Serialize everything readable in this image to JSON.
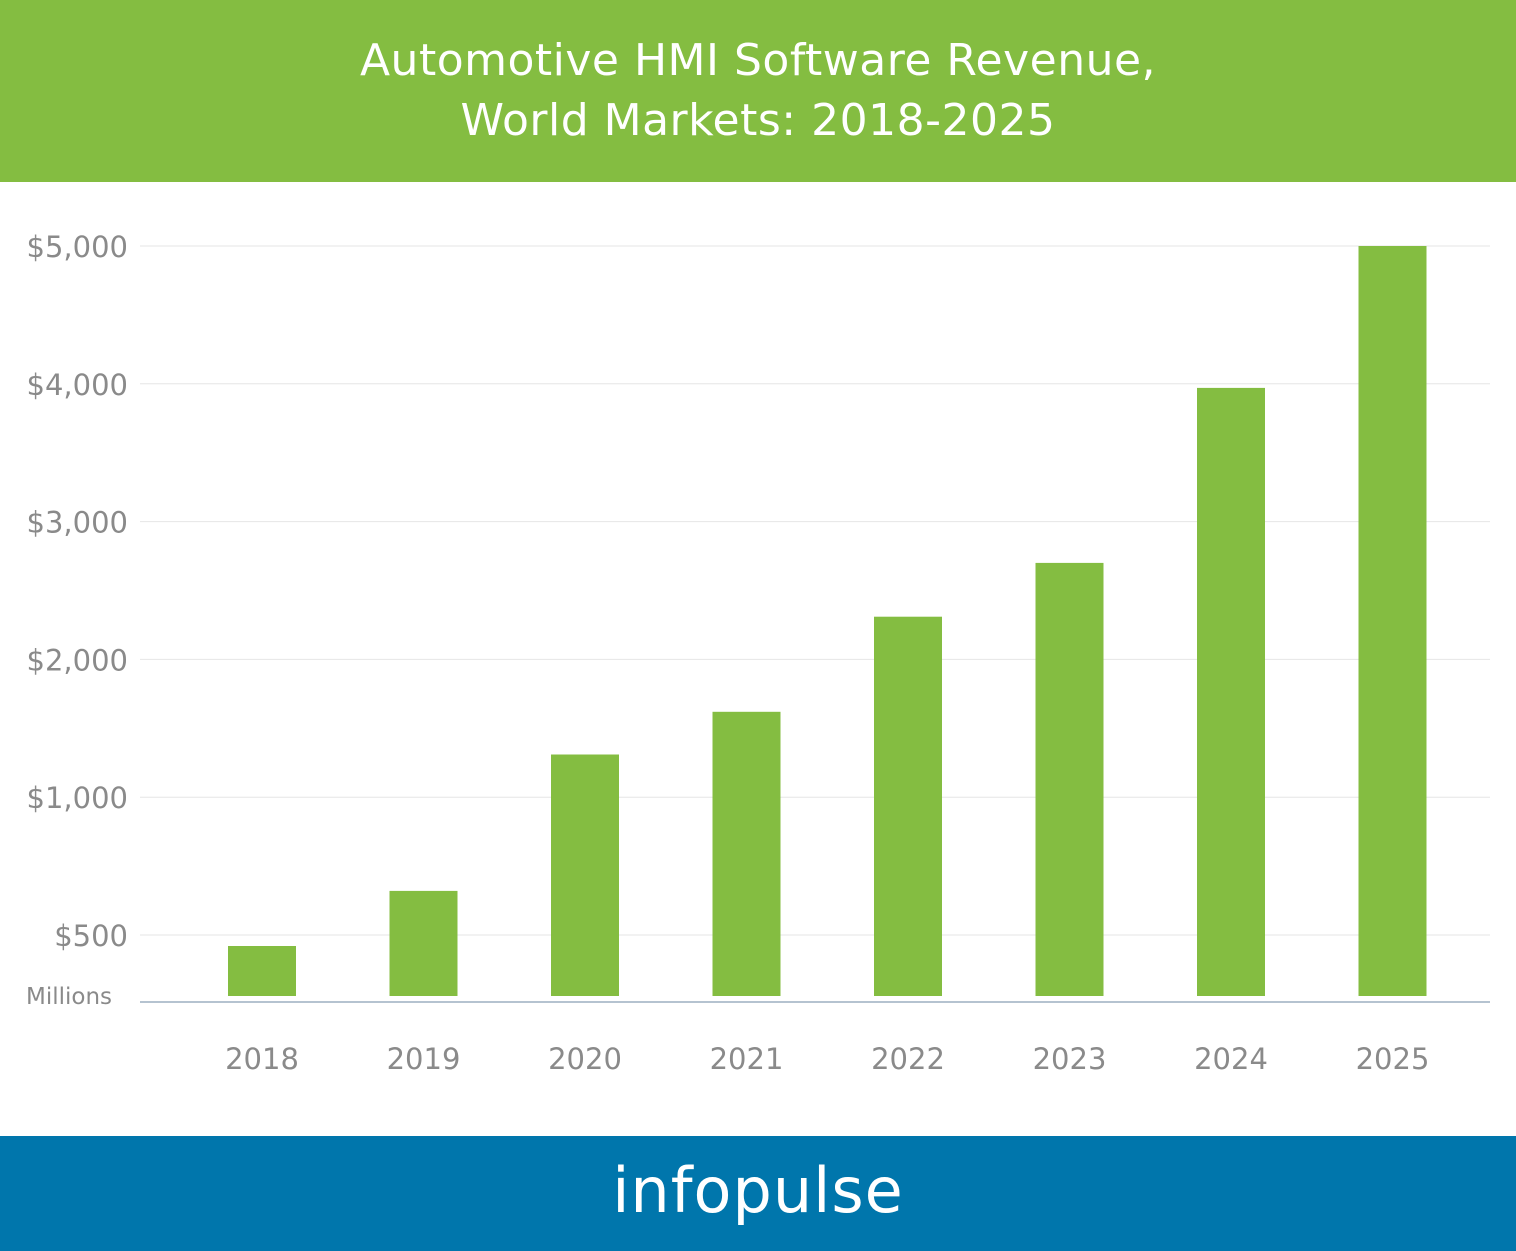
{
  "header": {
    "title_line1": "Automotive HMI Software Revenue,",
    "title_line2": "World Markets: 2018-2025"
  },
  "footer": {
    "logo_text": "infopulse"
  },
  "colors": {
    "header_bg": "#84bd41",
    "bar": "#84bd41",
    "footer_bg": "#0076ac",
    "axis_text": "#8a8a8a",
    "grid": "#e6e6e6",
    "baseline": "#b5c3d0"
  },
  "chart_data": {
    "type": "bar",
    "title": "Automotive HMI Software Revenue, World Markets: 2018-2025",
    "categories": [
      "2018",
      "2019",
      "2020",
      "2021",
      "2022",
      "2023",
      "2024",
      "2025"
    ],
    "values": [
      460,
      660,
      1310,
      1620,
      2310,
      2700,
      3970,
      5000
    ],
    "ylabel": "Millions",
    "y_ticks": [
      {
        "label": "$500",
        "value": 500
      },
      {
        "label": "$1,000",
        "value": 1000
      },
      {
        "label": "$2,000",
        "value": 2000
      },
      {
        "label": "$3,000",
        "value": 3000
      },
      {
        "label": "$4,000",
        "value": 4000
      },
      {
        "label": "$5,000",
        "value": 5000
      }
    ],
    "y_scale_note": "tick spacing is uniform but values are non-linear ($500 then $1,000 steps); bar tops read against tick positions",
    "grid": true,
    "legend": "none"
  }
}
